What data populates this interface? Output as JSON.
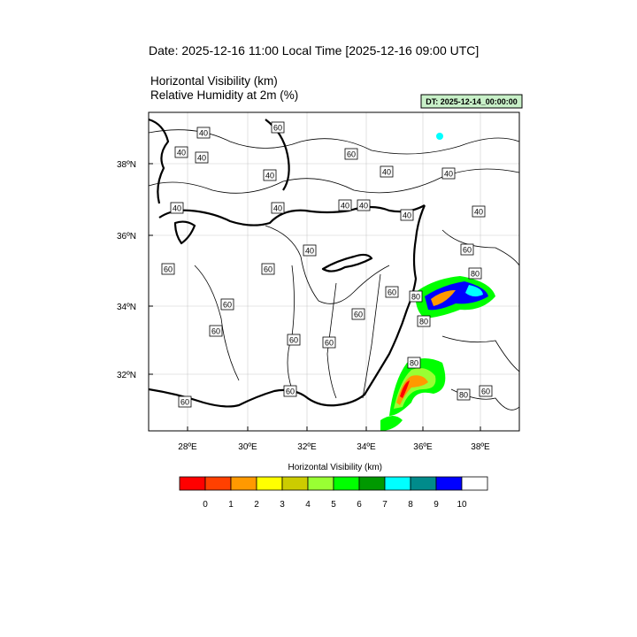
{
  "header": {
    "date": "Date: 2025-12-16  11:00 Local Time [2025-12-16  09:00 UTC]",
    "field1": "Horizontal Visibility   (km)",
    "field2": "Relative Humidity at 2m   (%)",
    "dt": "DT: 2025-12-14_00:00:00"
  },
  "map": {
    "lon_labels": [
      "28ºE",
      "30ºE",
      "32ºE",
      "34ºE",
      "36ºE",
      "38ºE"
    ],
    "lat_labels": [
      "38ºN",
      "36ºN",
      "34ºN",
      "32ºN"
    ],
    "contour_labels": [
      "40",
      "60",
      "40",
      "40",
      "60",
      "40",
      "40",
      "40",
      "40",
      "40",
      "40",
      "40",
      "40",
      "40",
      "60",
      "40",
      "60",
      "60",
      "80",
      "60",
      "80",
      "60",
      "60",
      "80",
      "60",
      "60",
      "60",
      "80",
      "80",
      "60",
      "60",
      "60"
    ]
  },
  "colorbar": {
    "title": "Horizontal Visibility  (km)",
    "colors": [
      "#ff0000",
      "#ff4000",
      "#ff9900",
      "#ffff00",
      "#cccc00",
      "#99ff33",
      "#00ff00",
      "#009900",
      "#00ffff",
      "#008b8b",
      "#0000ff",
      "#ffffff"
    ],
    "labels": [
      "0",
      "1",
      "2",
      "3",
      "4",
      "5",
      "6",
      "7",
      "8",
      "9",
      "10"
    ]
  }
}
